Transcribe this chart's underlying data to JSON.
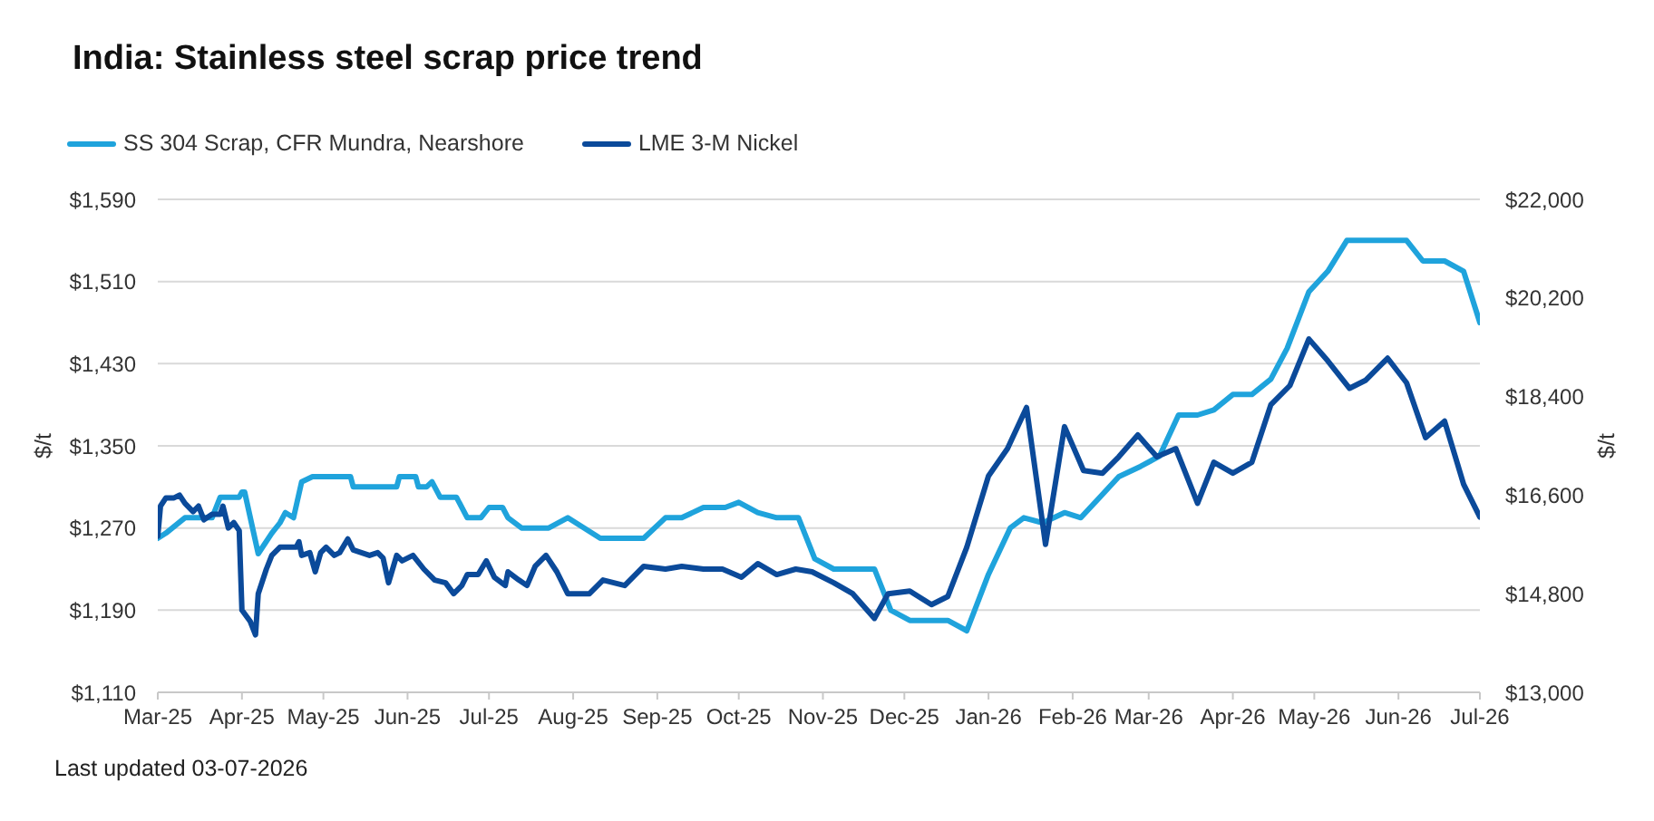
{
  "chart_data": {
    "type": "line",
    "title": "India: Stainless steel scrap price trend",
    "ylabel": "$/t",
    "y2label": "$/t",
    "annotations": [
      "Last updated 03-07-2026"
    ],
    "xlim": [
      "2025-03-01",
      "2026-07-01"
    ],
    "xticks": [
      {
        "value": "2025-03-01",
        "label": "Mar-25"
      },
      {
        "value": "2025-04-01",
        "label": "Apr-25"
      },
      {
        "value": "2025-05-01",
        "label": "May-25"
      },
      {
        "value": "2025-06-01",
        "label": "Jun-25"
      },
      {
        "value": "2025-07-01",
        "label": "Jul-25"
      },
      {
        "value": "2025-08-01",
        "label": "Aug-25"
      },
      {
        "value": "2025-09-01",
        "label": "Sep-25"
      },
      {
        "value": "2025-10-01",
        "label": "Oct-25"
      },
      {
        "value": "2025-11-01",
        "label": "Nov-25"
      },
      {
        "value": "2025-12-01",
        "label": "Dec-25"
      },
      {
        "value": "2026-01-01",
        "label": "Jan-26"
      },
      {
        "value": "2026-02-01",
        "label": "Feb-26"
      },
      {
        "value": "2026-03-01",
        "label": "Mar-26"
      },
      {
        "value": "2026-04-01",
        "label": "Apr-26"
      },
      {
        "value": "2026-05-01",
        "label": "May-26"
      },
      {
        "value": "2026-06-01",
        "label": "Jun-26"
      },
      {
        "value": "2026-07-01",
        "label": "Jul-26"
      }
    ],
    "ylim": [
      1110,
      1590
    ],
    "yticks": [
      {
        "value": 1110,
        "label": "$1,110"
      },
      {
        "value": 1190,
        "label": "$1,190"
      },
      {
        "value": 1270,
        "label": "$1,270"
      },
      {
        "value": 1350,
        "label": "$1,350"
      },
      {
        "value": 1430,
        "label": "$1,430"
      },
      {
        "value": 1510,
        "label": "$1,510"
      },
      {
        "value": 1590,
        "label": "$1,590"
      }
    ],
    "y2lim": [
      13000,
      22000
    ],
    "y2ticks": [
      {
        "value": 13000,
        "label": "$13,000"
      },
      {
        "value": 14800,
        "label": "$14,800"
      },
      {
        "value": 16600,
        "label": "$16,600"
      },
      {
        "value": 18400,
        "label": "$18,400"
      },
      {
        "value": 20200,
        "label": "$20,200"
      },
      {
        "value": 22000,
        "label": "$22,000"
      }
    ],
    "grid": "y",
    "legend": "top left",
    "marker": "none",
    "line_style": "solid",
    "series": [
      {
        "name": "SS 304 Scrap, CFR Mundra, Nearshore",
        "color": "#1fa3dc",
        "x": [
          "2025-03-01",
          "2025-03-04",
          "2025-03-11",
          "2025-03-17",
          "2025-03-21",
          "2025-03-24",
          "2025-03-31",
          "2025-04-01",
          "2025-04-02",
          "2025-04-07",
          "2025-04-12",
          "2025-04-15",
          "2025-04-17",
          "2025-04-20",
          "2025-04-23",
          "2025-04-27",
          "2025-05-11",
          "2025-05-12",
          "2025-05-28",
          "2025-05-29",
          "2025-06-04",
          "2025-06-05",
          "2025-06-08",
          "2025-06-10",
          "2025-06-13",
          "2025-06-19",
          "2025-06-23",
          "2025-06-28",
          "2025-07-01",
          "2025-07-06",
          "2025-07-08",
          "2025-07-13",
          "2025-07-23",
          "2025-07-30",
          "2025-08-11",
          "2025-08-27",
          "2025-09-04",
          "2025-09-10",
          "2025-09-18",
          "2025-09-26",
          "2025-10-01",
          "2025-10-08",
          "2025-10-15",
          "2025-10-23",
          "2025-10-29",
          "2025-11-05",
          "2025-11-20",
          "2025-11-26",
          "2025-12-03",
          "2025-12-17",
          "2025-12-24",
          "2026-01-01",
          "2026-01-09",
          "2026-01-14",
          "2026-01-21",
          "2026-01-29",
          "2026-02-04",
          "2026-02-11",
          "2026-02-18",
          "2026-02-26",
          "2026-03-05",
          "2026-03-12",
          "2026-03-19",
          "2026-03-25",
          "2026-04-01",
          "2026-04-08",
          "2026-04-15",
          "2026-04-21",
          "2026-04-29",
          "2026-05-06",
          "2026-05-13",
          "2026-06-04",
          "2026-06-10",
          "2026-06-18",
          "2026-06-25",
          "2026-07-01"
        ],
        "values": [
          1260,
          1265,
          1280,
          1280,
          1280,
          1300,
          1300,
          1305,
          1305,
          1245,
          1265,
          1275,
          1285,
          1280,
          1315,
          1320,
          1320,
          1310,
          1310,
          1320,
          1320,
          1310,
          1310,
          1315,
          1300,
          1300,
          1280,
          1280,
          1290,
          1290,
          1280,
          1270,
          1270,
          1280,
          1260,
          1260,
          1280,
          1280,
          1290,
          1290,
          1295,
          1285,
          1280,
          1280,
          1240,
          1230,
          1230,
          1190,
          1180,
          1180,
          1170,
          1225,
          1270,
          1280,
          1275,
          1285,
          1280,
          1300,
          1320,
          1330,
          1340,
          1380,
          1380,
          1385,
          1400,
          1400,
          1415,
          1445,
          1500,
          1520,
          1550,
          1550,
          1530,
          1530,
          1520,
          1470
        ]
      },
      {
        "name": "LME 3-M Nickel",
        "color": "#0b4a9a",
        "axis": "y2",
        "x": [
          "2025-03-01",
          "2025-03-02",
          "2025-03-04",
          "2025-03-07",
          "2025-03-09",
          "2025-03-11",
          "2025-03-14",
          "2025-03-16",
          "2025-03-18",
          "2025-03-21",
          "2025-03-24",
          "2025-03-25",
          "2025-03-27",
          "2025-03-29",
          "2025-03-31",
          "2025-04-01",
          "2025-04-04",
          "2025-04-06",
          "2025-04-07",
          "2025-04-10",
          "2025-04-12",
          "2025-04-15",
          "2025-04-17",
          "2025-04-21",
          "2025-04-22",
          "2025-04-23",
          "2025-04-26",
          "2025-04-28",
          "2025-04-30",
          "2025-05-02",
          "2025-05-05",
          "2025-05-07",
          "2025-05-10",
          "2025-05-12",
          "2025-05-18",
          "2025-05-21",
          "2025-05-23",
          "2025-05-25",
          "2025-05-28",
          "2025-05-30",
          "2025-06-03",
          "2025-06-07",
          "2025-06-11",
          "2025-06-15",
          "2025-06-18",
          "2025-06-21",
          "2025-06-23",
          "2025-06-27",
          "2025-06-30",
          "2025-07-03",
          "2025-07-07",
          "2025-07-08",
          "2025-07-12",
          "2025-07-15",
          "2025-07-18",
          "2025-07-22",
          "2025-07-26",
          "2025-07-30",
          "2025-08-07",
          "2025-08-12",
          "2025-08-20",
          "2025-08-27",
          "2025-09-04",
          "2025-09-10",
          "2025-09-18",
          "2025-09-25",
          "2025-10-02",
          "2025-10-08",
          "2025-10-15",
          "2025-10-22",
          "2025-10-28",
          "2025-11-05",
          "2025-11-12",
          "2025-11-20",
          "2025-11-25",
          "2025-12-03",
          "2025-12-11",
          "2025-12-17",
          "2025-12-24",
          "2026-01-01",
          "2026-01-08",
          "2026-01-15",
          "2026-01-22",
          "2026-01-29",
          "2026-02-05",
          "2026-02-12",
          "2026-02-18",
          "2026-02-25",
          "2026-03-04",
          "2026-03-11",
          "2026-03-19",
          "2026-03-25",
          "2026-04-01",
          "2026-04-08",
          "2026-04-15",
          "2026-04-22",
          "2026-04-29",
          "2026-05-06",
          "2026-05-14",
          "2026-05-20",
          "2026-05-28",
          "2026-06-04",
          "2026-06-11",
          "2026-06-18",
          "2026-06-25",
          "2026-07-01"
        ],
        "values": [
          15850,
          16400,
          16550,
          16550,
          16600,
          16450,
          16300,
          16400,
          16150,
          16250,
          16250,
          16400,
          16000,
          16100,
          15950,
          14500,
          14300,
          14050,
          14800,
          15250,
          15500,
          15650,
          15650,
          15650,
          15750,
          15500,
          15550,
          15200,
          15550,
          15650,
          15500,
          15550,
          15800,
          15600,
          15500,
          15550,
          15450,
          15000,
          15500,
          15400,
          15500,
          15250,
          15050,
          15000,
          14800,
          14950,
          15150,
          15150,
          15400,
          15100,
          14950,
          15200,
          15050,
          14950,
          15300,
          15500,
          15200,
          14800,
          14800,
          15050,
          14950,
          15300,
          15250,
          15300,
          15250,
          15250,
          15100,
          15350,
          15150,
          15250,
          15200,
          15000,
          14800,
          14350,
          14800,
          14850,
          14600,
          14750,
          15650,
          16950,
          17450,
          18200,
          15700,
          17850,
          17050,
          17000,
          17300,
          17700,
          17300,
          17450,
          16450,
          17200,
          17000,
          17200,
          18250,
          18600,
          19450,
          19050,
          18550,
          18700,
          19100,
          18650,
          17650,
          17950,
          16800,
          16200
        ]
      }
    ]
  }
}
